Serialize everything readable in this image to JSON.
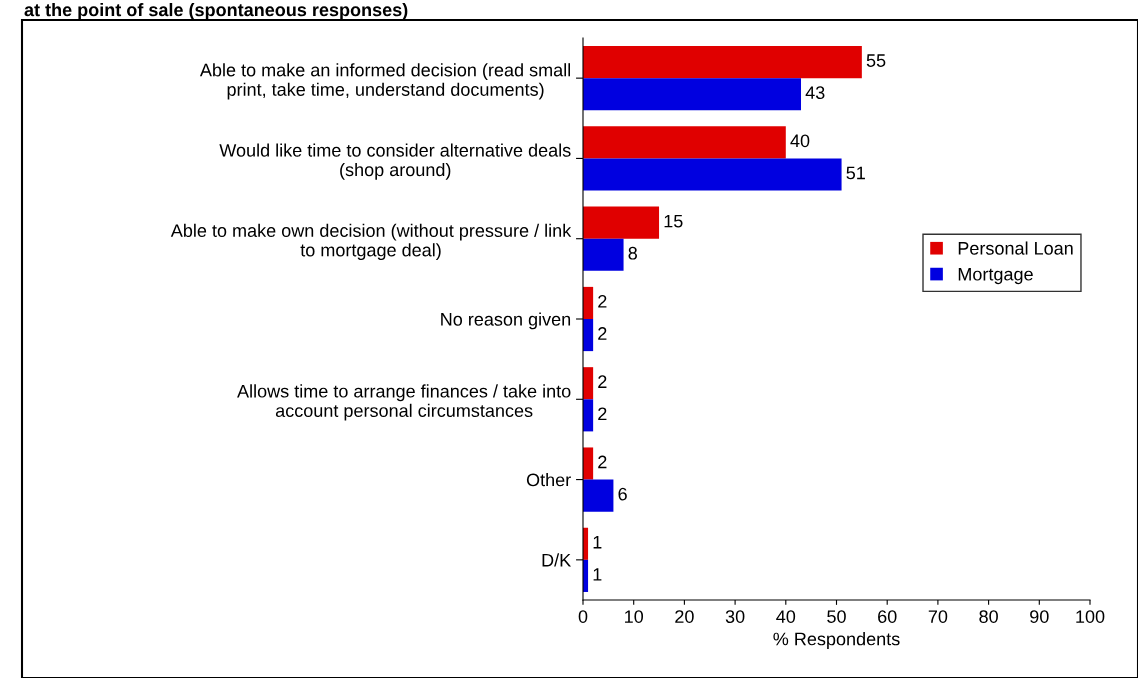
{
  "chart_data": {
    "type": "bar",
    "orientation": "horizontal",
    "title": "at the point of sale (spontaneous responses)",
    "categories": [
      "Able to make an informed decision (read small\nprint, take time, understand documents)",
      "Would like time to consider alternative deals\n(shop around)",
      "Able to make own decision (without pressure / link\nto mortgage deal)",
      "No reason given",
      "Allows time to arrange finances / take into\naccount personal circumstances",
      "Other",
      "D/K"
    ],
    "series": [
      {
        "name": "Personal Loan",
        "color": "#e00000",
        "values": [
          55,
          40,
          15,
          2,
          2,
          2,
          1
        ]
      },
      {
        "name": "Mortgage",
        "color": "#0000e0",
        "values": [
          43,
          51,
          8,
          2,
          2,
          6,
          1
        ]
      }
    ],
    "xlabel": "% Respondents",
    "xlim": [
      0,
      100
    ],
    "xticks": [
      0,
      10,
      20,
      30,
      40,
      50,
      60,
      70,
      80,
      90,
      100
    ],
    "data_labels": true,
    "legend": "right",
    "grid": false
  }
}
